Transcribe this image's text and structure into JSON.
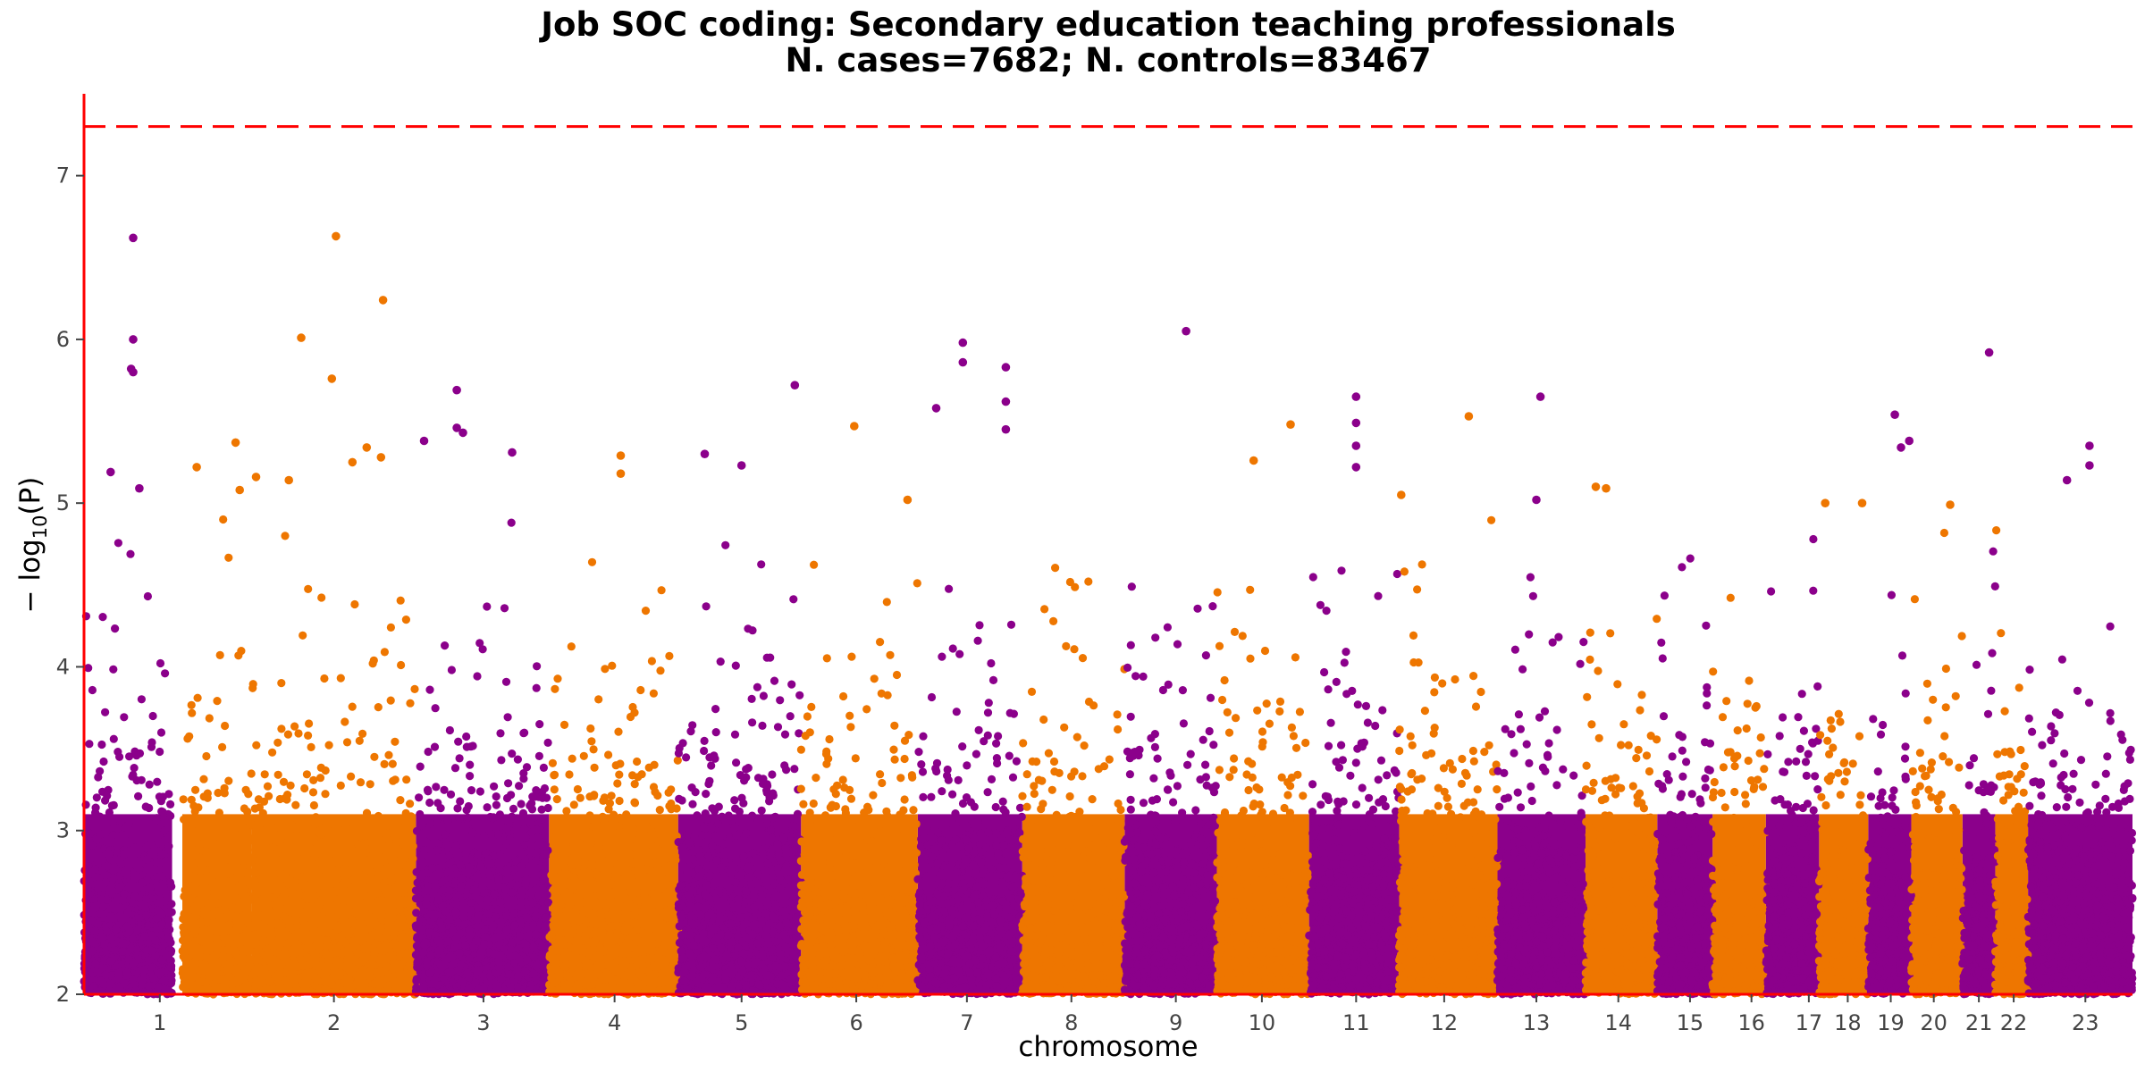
{
  "chart_data": {
    "type": "scatter",
    "title": "Job SOC coding: Secondary education teaching professionals",
    "subtitle": "N. cases=7682; N. controls=83467",
    "xlabel": "chromosome",
    "ylabel_prefix": "− log",
    "ylabel_sub": "10",
    "ylabel_suffix": "(P)",
    "ylim": [
      2,
      7.5
    ],
    "yticks": [
      2,
      3,
      4,
      5,
      6,
      7
    ],
    "significance_line": 7.3,
    "grid": false,
    "colors": {
      "odd": "#8B008B",
      "even": "#EE7600",
      "threshold": "#FF0000",
      "axis": "#FF0000"
    },
    "chromosomes": [
      {
        "label": "1",
        "start": 0.0,
        "end": 0.043,
        "tick": 0.037
      },
      {
        "label": "",
        "start": 0.048,
        "end": 0.082
      },
      {
        "label": "2",
        "start": 0.082,
        "end": 0.162,
        "tick": 0.122
      },
      {
        "label": "3",
        "start": 0.162,
        "end": 0.227,
        "tick": 0.195
      },
      {
        "label": "4",
        "start": 0.227,
        "end": 0.29,
        "tick": 0.259
      },
      {
        "label": "5",
        "start": 0.29,
        "end": 0.35,
        "tick": 0.321
      },
      {
        "label": "6",
        "start": 0.35,
        "end": 0.407,
        "tick": 0.377
      },
      {
        "label": "7",
        "start": 0.407,
        "end": 0.458,
        "tick": 0.431
      },
      {
        "label": "8",
        "start": 0.458,
        "end": 0.508,
        "tick": 0.482
      },
      {
        "label": "9",
        "start": 0.508,
        "end": 0.553,
        "tick": 0.533
      },
      {
        "label": "10",
        "start": 0.553,
        "end": 0.598,
        "tick": 0.575
      },
      {
        "label": "11",
        "start": 0.598,
        "end": 0.642,
        "tick": 0.621
      },
      {
        "label": "12",
        "start": 0.642,
        "end": 0.69,
        "tick": 0.664
      },
      {
        "label": "13",
        "start": 0.69,
        "end": 0.733,
        "tick": 0.709
      },
      {
        "label": "14",
        "start": 0.733,
        "end": 0.768,
        "tick": 0.749
      },
      {
        "label": "15",
        "start": 0.768,
        "end": 0.795,
        "tick": 0.784
      },
      {
        "label": "16",
        "start": 0.795,
        "end": 0.821,
        "tick": 0.814
      },
      {
        "label": "17",
        "start": 0.821,
        "end": 0.847,
        "tick": 0.842
      },
      {
        "label": "18",
        "start": 0.847,
        "end": 0.871,
        "tick": 0.861
      },
      {
        "label": "19",
        "start": 0.871,
        "end": 0.892,
        "tick": 0.882
      },
      {
        "label": "20",
        "start": 0.892,
        "end": 0.917,
        "tick": 0.903
      },
      {
        "label": "21",
        "start": 0.917,
        "end": 0.933,
        "tick": 0.925
      },
      {
        "label": "22",
        "start": 0.933,
        "end": 0.949,
        "tick": 0.942
      },
      {
        "label": "23",
        "start": 0.949,
        "end": 1.0,
        "tick": 0.977
      }
    ],
    "top_hits": [
      {
        "x": 0.024,
        "y": 6.62
      },
      {
        "x": 0.024,
        "y": 6.0
      },
      {
        "x": 0.023,
        "y": 5.82
      },
      {
        "x": 0.024,
        "y": 5.8
      },
      {
        "x": 0.027,
        "y": 5.09
      },
      {
        "x": 0.013,
        "y": 5.19
      },
      {
        "x": 0.055,
        "y": 5.22
      },
      {
        "x": 0.074,
        "y": 5.37
      },
      {
        "x": 0.076,
        "y": 5.08
      },
      {
        "x": 0.084,
        "y": 5.16
      },
      {
        "x": 0.1,
        "y": 5.14
      },
      {
        "x": 0.106,
        "y": 6.01
      },
      {
        "x": 0.123,
        "y": 6.63
      },
      {
        "x": 0.121,
        "y": 5.76
      },
      {
        "x": 0.131,
        "y": 5.25
      },
      {
        "x": 0.138,
        "y": 5.34
      },
      {
        "x": 0.146,
        "y": 6.24
      },
      {
        "x": 0.145,
        "y": 5.28
      },
      {
        "x": 0.166,
        "y": 5.38
      },
      {
        "x": 0.182,
        "y": 5.69
      },
      {
        "x": 0.182,
        "y": 5.46
      },
      {
        "x": 0.185,
        "y": 5.43
      },
      {
        "x": 0.209,
        "y": 5.31
      },
      {
        "x": 0.262,
        "y": 5.29
      },
      {
        "x": 0.262,
        "y": 5.18
      },
      {
        "x": 0.303,
        "y": 5.3
      },
      {
        "x": 0.321,
        "y": 5.23
      },
      {
        "x": 0.347,
        "y": 5.72
      },
      {
        "x": 0.376,
        "y": 5.47
      },
      {
        "x": 0.402,
        "y": 5.02
      },
      {
        "x": 0.416,
        "y": 5.58
      },
      {
        "x": 0.429,
        "y": 5.98
      },
      {
        "x": 0.429,
        "y": 5.86
      },
      {
        "x": 0.45,
        "y": 5.83
      },
      {
        "x": 0.45,
        "y": 5.62
      },
      {
        "x": 0.45,
        "y": 5.45
      },
      {
        "x": 0.538,
        "y": 6.05
      },
      {
        "x": 0.571,
        "y": 5.26
      },
      {
        "x": 0.589,
        "y": 5.48
      },
      {
        "x": 0.621,
        "y": 5.65
      },
      {
        "x": 0.621,
        "y": 5.49
      },
      {
        "x": 0.621,
        "y": 5.35
      },
      {
        "x": 0.621,
        "y": 5.22
      },
      {
        "x": 0.643,
        "y": 5.05
      },
      {
        "x": 0.676,
        "y": 5.53
      },
      {
        "x": 0.711,
        "y": 5.65
      },
      {
        "x": 0.709,
        "y": 5.02
      },
      {
        "x": 0.738,
        "y": 5.1
      },
      {
        "x": 0.743,
        "y": 5.09
      },
      {
        "x": 0.85,
        "y": 5.0
      },
      {
        "x": 0.868,
        "y": 5.0
      },
      {
        "x": 0.884,
        "y": 5.54
      },
      {
        "x": 0.891,
        "y": 5.38
      },
      {
        "x": 0.887,
        "y": 5.34
      },
      {
        "x": 0.911,
        "y": 4.99
      },
      {
        "x": 0.93,
        "y": 5.92
      },
      {
        "x": 0.968,
        "y": 5.14
      },
      {
        "x": 0.979,
        "y": 5.35
      },
      {
        "x": 0.979,
        "y": 5.23
      }
    ]
  }
}
